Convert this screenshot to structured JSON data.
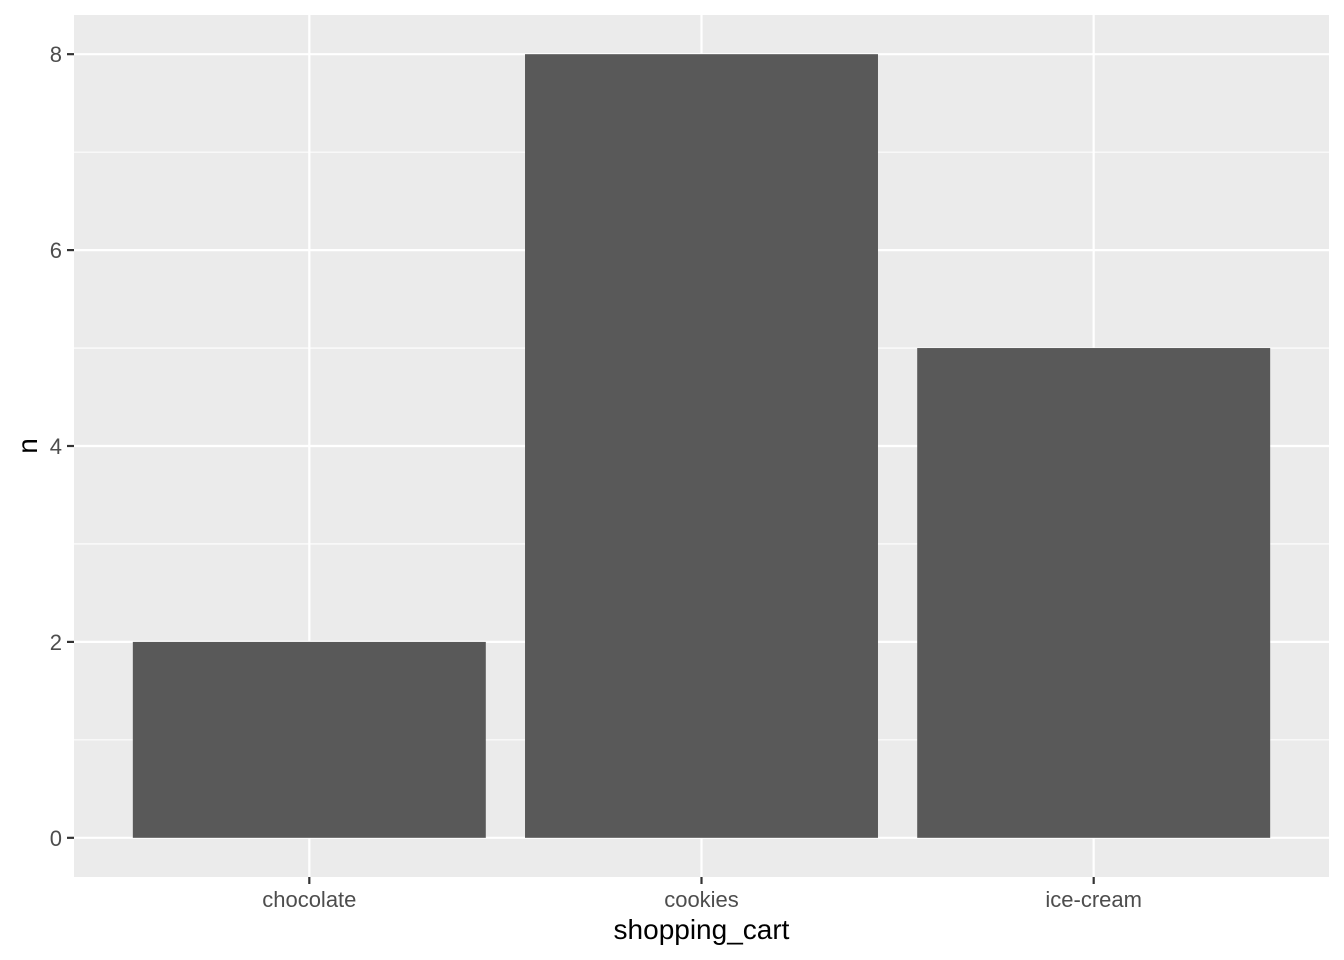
{
  "chart_data": {
    "type": "bar",
    "categories": [
      "chocolate",
      "cookies",
      "ice-cream"
    ],
    "values": [
      2,
      8,
      5
    ],
    "title": "",
    "xlabel": "shopping_cart",
    "ylabel": "n",
    "ylim": [
      -0.4,
      8.4
    ],
    "yticks": [
      0,
      2,
      4,
      6,
      8
    ],
    "yticks_minor": [
      1,
      3,
      5,
      7
    ],
    "grid": true,
    "legend": "none",
    "colors": {
      "bar": "#595959",
      "panel_background": "#ebebeb",
      "grid": "#ffffff",
      "tick_text": "#4d4d4d",
      "tick_mark": "#333333",
      "axis_title": "#000000"
    }
  }
}
